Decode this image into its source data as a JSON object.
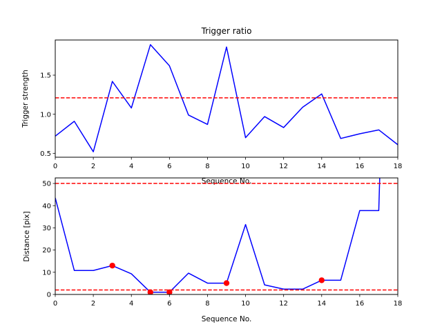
{
  "chart_data": [
    {
      "type": "line",
      "title": "Trigger ratio",
      "xlabel": "Sequence No.",
      "ylabel": "Trigger strength",
      "xlim": [
        0,
        18
      ],
      "ylim": [
        0.45,
        1.95
      ],
      "xticks": [
        0,
        2,
        4,
        6,
        8,
        10,
        12,
        14,
        16,
        18
      ],
      "yticks": [
        0.5,
        1.0,
        1.5
      ],
      "ytick_labels": [
        "0.5",
        "1.0",
        "1.5"
      ],
      "grid": false,
      "line_color": "#0000ff",
      "series": [
        {
          "x": [
            0,
            1,
            2,
            3,
            4,
            5,
            6,
            7,
            8,
            9,
            10,
            11,
            12,
            13,
            14,
            15,
            16,
            17,
            18
          ],
          "y": [
            0.72,
            0.91,
            0.52,
            1.42,
            1.08,
            1.89,
            1.62,
            0.99,
            0.87,
            1.86,
            0.7,
            0.97,
            0.83,
            1.09,
            1.26,
            0.69,
            0.75,
            0.8,
            0.61
          ]
        }
      ],
      "threshold_lines": [
        {
          "y": 1.21,
          "color": "#ff0000",
          "style": "dashed"
        }
      ]
    },
    {
      "type": "line",
      "title": "",
      "xlabel": "Sequence No.",
      "ylabel": "Distance [pix]",
      "xlim": [
        0,
        18
      ],
      "ylim": [
        0,
        52.5
      ],
      "xticks": [
        0,
        2,
        4,
        6,
        8,
        10,
        12,
        14,
        16,
        18
      ],
      "yticks": [
        0,
        10,
        20,
        30,
        40,
        50
      ],
      "ytick_labels": [
        "0",
        "10",
        "20",
        "30",
        "40",
        "50"
      ],
      "grid": false,
      "line_color": "#0000ff",
      "series": [
        {
          "x": [
            0,
            1,
            2,
            3,
            4,
            5,
            6,
            7,
            8,
            9,
            10,
            11,
            12,
            13,
            14,
            15,
            16,
            17,
            17.05
          ],
          "y": [
            43.5,
            10.8,
            10.8,
            13.0,
            9.3,
            1.0,
            1.0,
            9.6,
            5.1,
            5.1,
            31.5,
            4.3,
            2.4,
            2.4,
            6.4,
            6.4,
            37.8,
            37.8,
            52.5
          ]
        }
      ],
      "markers": {
        "x": [
          3,
          5,
          6,
          9,
          14
        ],
        "y": [
          13.0,
          1.0,
          1.0,
          5.1,
          6.4
        ],
        "color": "#ff0000"
      },
      "threshold_lines": [
        {
          "y": 50,
          "color": "#ff0000",
          "style": "dashed"
        },
        {
          "y": 2,
          "color": "#ff0000",
          "style": "dashed"
        }
      ]
    }
  ]
}
